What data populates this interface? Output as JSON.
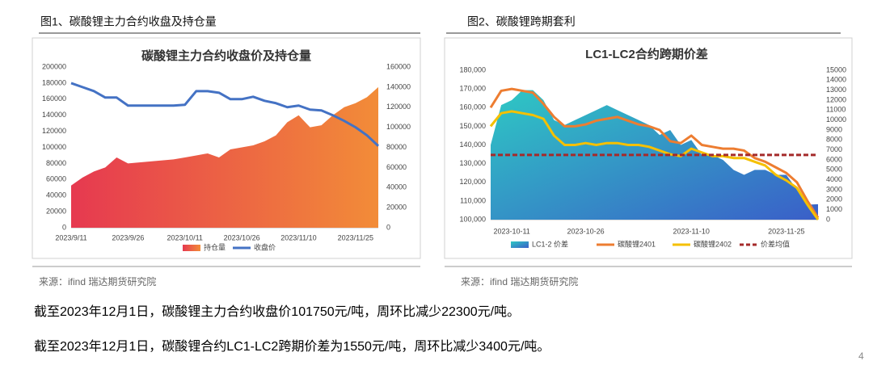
{
  "figures": [
    {
      "caption": "图1、碳酸锂主力合约收盘及持仓量",
      "source": "来源：ifind  瑞达期货研究院"
    },
    {
      "caption": "图2、碳酸锂跨期套利",
      "source": "来源：ifind  瑞达期货研究院"
    }
  ],
  "paragraphs": [
    "截至2023年12月1日，碳酸锂主力合约收盘价101750元/吨，周环比减少22300元/吨。",
    "截至2023年12月1日，碳酸锂合约LC1-LC2跨期价差为1550元/吨，周环比减少3400元/吨。"
  ],
  "page_number": "4",
  "chart_data": [
    {
      "type": "line",
      "title": "碳酸锂主力合约收盘价及持仓量",
      "categories": [
        "2023/9/11",
        null,
        null,
        null,
        null,
        "2023/9/26",
        null,
        null,
        null,
        null,
        "2023/10/11",
        null,
        null,
        null,
        null,
        "2023/10/26",
        null,
        null,
        null,
        null,
        "2023/11/10",
        null,
        null,
        null,
        null,
        "2023/11/25",
        null,
        null
      ],
      "series": [
        {
          "name": "持仓量",
          "type": "area",
          "axis": "y2",
          "color": "#ec5a3c",
          "gradient": [
            "#e63950",
            "#f28c38"
          ],
          "values": [
            42000,
            50000,
            56000,
            60000,
            70000,
            64000,
            65000,
            66000,
            67000,
            68000,
            70000,
            72000,
            74000,
            70000,
            78000,
            80000,
            82000,
            86000,
            92000,
            105000,
            112000,
            100000,
            102000,
            112000,
            120000,
            124000,
            130000,
            140000
          ]
        },
        {
          "name": "收盘价",
          "type": "line",
          "color": "#4472c4",
          "values": [
            180000,
            175000,
            170000,
            162000,
            162000,
            152000,
            152000,
            152000,
            152000,
            152000,
            153000,
            170000,
            170000,
            168000,
            160000,
            160000,
            163000,
            158000,
            155000,
            150000,
            152000,
            147000,
            146000,
            140000,
            133000,
            125000,
            115000,
            101750
          ]
        }
      ],
      "ylim": [
        0,
        200000
      ],
      "yticks": [
        0,
        20000,
        40000,
        60000,
        80000,
        100000,
        120000,
        140000,
        160000,
        180000,
        200000
      ],
      "y2lim": [
        0,
        160000
      ],
      "y2ticks": [
        0,
        20000,
        40000,
        60000,
        80000,
        100000,
        120000,
        140000,
        160000
      ],
      "grid": false,
      "legend": "bottom"
    },
    {
      "type": "line",
      "title": "LC1-LC2合约跨期价差",
      "categories": [
        null,
        null,
        "2023-10-11",
        null,
        null,
        null,
        null,
        null,
        null,
        "2023-10-26",
        null,
        null,
        null,
        null,
        null,
        null,
        null,
        null,
        null,
        "2023-11-10",
        null,
        null,
        null,
        null,
        null,
        null,
        null,
        null,
        "2023-11-25",
        null,
        null,
        null
      ],
      "series": [
        {
          "name": "LC1-2 价差",
          "type": "area",
          "axis": "y2",
          "color": "#33a6c4",
          "gradient": [
            "#2ec8c4",
            "#3a5fc8"
          ],
          "values": [
            7500,
            11500,
            12000,
            13000,
            13000,
            12000,
            10000,
            9500,
            10000,
            10500,
            11000,
            11500,
            11000,
            10500,
            10000,
            9500,
            8500,
            9000,
            7500,
            8000,
            6500,
            6500,
            6000,
            5000,
            4500,
            5000,
            5000,
            4500,
            4500,
            3000,
            1500,
            1550
          ]
        },
        {
          "name": "碳酸锂2401",
          "type": "line",
          "color": "#ed7d31",
          "values": [
            160000,
            169000,
            170000,
            169000,
            168000,
            162000,
            155000,
            150000,
            150000,
            151000,
            153000,
            154000,
            155000,
            153000,
            151000,
            150000,
            148000,
            142000,
            141000,
            145000,
            140000,
            139000,
            138000,
            138000,
            137000,
            133000,
            131000,
            128000,
            125000,
            120000,
            110000,
            101000
          ]
        },
        {
          "name": "碳酸锂2402",
          "type": "line",
          "color": "#f5c000",
          "values": [
            150000,
            157000,
            158000,
            157000,
            156000,
            154000,
            145000,
            140000,
            140000,
            141000,
            140000,
            141000,
            141000,
            140000,
            140000,
            139000,
            137000,
            135000,
            134000,
            138000,
            136000,
            134000,
            134000,
            133000,
            133000,
            131000,
            129000,
            124000,
            121000,
            117000,
            108000,
            100000
          ]
        },
        {
          "name": "价差均值",
          "type": "line",
          "dash": true,
          "axis": "y2",
          "color": "#a52a2a",
          "values": [
            6500,
            6500,
            6500,
            6500,
            6500,
            6500,
            6500,
            6500,
            6500,
            6500,
            6500,
            6500,
            6500,
            6500,
            6500,
            6500,
            6500,
            6500,
            6500,
            6500,
            6500,
            6500,
            6500,
            6500,
            6500,
            6500,
            6500,
            6500,
            6500,
            6500,
            6500,
            6500
          ]
        }
      ],
      "ylim": [
        100000,
        180000
      ],
      "yticks": [
        {
          "value": 100000,
          "label": "100,000"
        },
        {
          "value": 110000,
          "label": "110,000"
        },
        {
          "value": 120000,
          "label": "120,000"
        },
        {
          "value": 130000,
          "label": "130,000"
        },
        {
          "value": 140000,
          "label": "140,000"
        },
        {
          "value": 150000,
          "label": "150,000"
        },
        {
          "value": 160000,
          "label": "160,000"
        },
        {
          "value": 170000,
          "label": "170,000"
        },
        {
          "value": 180000,
          "label": "180,000"
        }
      ],
      "y2lim": [
        0,
        15000
      ],
      "y2ticks": [
        0,
        1000,
        2000,
        3000,
        4000,
        5000,
        6000,
        7000,
        8000,
        9000,
        10000,
        11000,
        12000,
        13000,
        14000,
        15000
      ],
      "grid": false,
      "legend": "bottom"
    }
  ]
}
